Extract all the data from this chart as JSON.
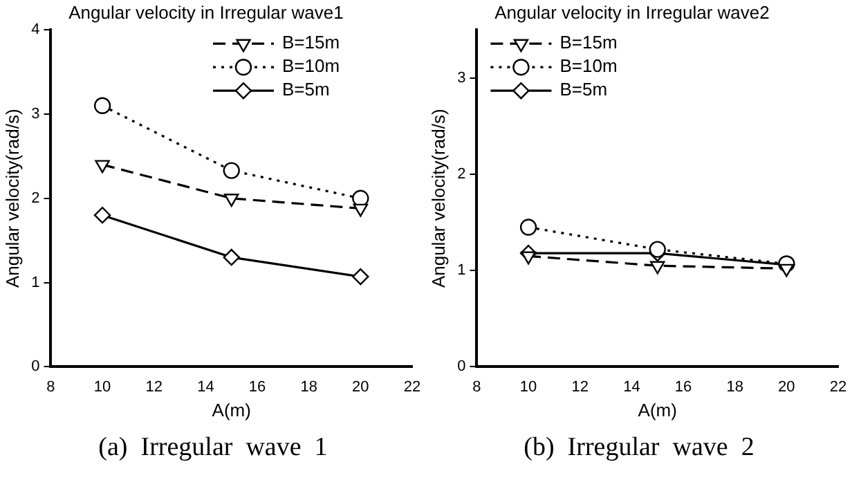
{
  "chart_data": [
    {
      "type": "line",
      "title": "Angular velocity in Irregular wave1",
      "xlabel": "A(m)",
      "ylabel": "Angular velocity(rad/s)",
      "x": [
        10,
        15,
        20
      ],
      "xlim": [
        8,
        22
      ],
      "xticks": [
        8,
        10,
        12,
        14,
        16,
        18,
        20,
        22
      ],
      "ylim": [
        0,
        4
      ],
      "yticks": [
        0,
        1,
        2,
        3,
        4
      ],
      "grid": false,
      "legend": "top right",
      "annotations": [
        "(a)  Irregular  wave  1"
      ],
      "series": [
        {
          "name": "B=15m",
          "color": "#000000",
          "values": [
            2.4,
            2.0,
            1.88
          ],
          "marker": "triangle",
          "line_style": "dashed"
        },
        {
          "name": "B=10m",
          "color": "#000000",
          "values": [
            3.1,
            2.33,
            2.0
          ],
          "marker": "circle",
          "line_style": "dotted"
        },
        {
          "name": "B=5m",
          "color": "#000000",
          "values": [
            1.8,
            1.3,
            1.07
          ],
          "marker": "diamond",
          "line_style": "solid"
        }
      ]
    },
    {
      "type": "line",
      "title": "Angular velocity in Irregular wave2",
      "xlabel": "A(m)",
      "ylabel": "Angular velocity(rad/s)",
      "x": [
        10,
        15,
        20
      ],
      "xlim": [
        8,
        22
      ],
      "xticks": [
        8,
        10,
        12,
        14,
        16,
        18,
        20,
        22
      ],
      "ylim": [
        0,
        3.5
      ],
      "yticks": [
        0,
        1,
        2,
        3
      ],
      "grid": false,
      "legend": "top left",
      "annotations": [
        "(b)  Irregular  wave  2"
      ],
      "series": [
        {
          "name": "B=15m",
          "color": "#000000",
          "values": [
            1.15,
            1.05,
            1.02
          ],
          "marker": "triangle",
          "line_style": "dashed"
        },
        {
          "name": "B=10m",
          "color": "#000000",
          "values": [
            1.45,
            1.22,
            1.07
          ],
          "marker": "circle",
          "line_style": "dotted"
        },
        {
          "name": "B=5m",
          "color": "#000000",
          "values": [
            1.18,
            1.18,
            1.06
          ],
          "marker": "diamond",
          "line_style": "solid"
        }
      ]
    }
  ]
}
